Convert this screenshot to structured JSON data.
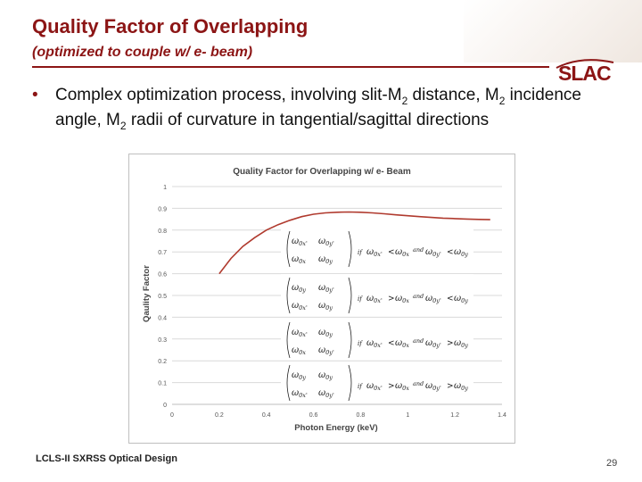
{
  "slide": {
    "title": "Quality Factor of Overlapping",
    "subtitle": "(optimized to couple w/ e- beam)",
    "logo": "SLAC",
    "bullet": {
      "marker": "•",
      "text_a": "Complex optimization process, involving slit-M",
      "sub_a": "2",
      "text_b": " distance, M",
      "sub_b": "2",
      "text_c": " incidence angle, M",
      "sub_c": "2",
      "text_d": " radii of curvature in tangential/sagittal directions"
    },
    "footer": "LCLS-II SXRSS Optical Design",
    "page_number": "29"
  },
  "chart_data": {
    "type": "line",
    "title": "Quality Factor for Overlapping w/ e- Beam",
    "xlabel": "Photon Energy (keV)",
    "ylabel": "Qaulity Factor",
    "xlim": [
      0,
      1.4
    ],
    "ylim": [
      0,
      1
    ],
    "xticks": [
      "0",
      "0.2",
      "0.4",
      "0.6",
      "0.8",
      "1",
      "1.2",
      "1.4"
    ],
    "yticks": [
      "0",
      "0.1",
      "0.2",
      "0.3",
      "0.4",
      "0.5",
      "0.6",
      "0.7",
      "0.8",
      "0.9",
      "1"
    ],
    "grid": true,
    "line_color": "#b03a2e",
    "series": [
      {
        "x": [
          0.2,
          0.25,
          0.3,
          0.35,
          0.4,
          0.45,
          0.5,
          0.55,
          0.6,
          0.65,
          0.7,
          0.75,
          0.8,
          0.85,
          0.9,
          0.95,
          1.0,
          1.05,
          1.1,
          1.15,
          1.2,
          1.25,
          1.3,
          1.35
        ],
        "y": [
          0.6,
          0.67,
          0.725,
          0.765,
          0.8,
          0.825,
          0.845,
          0.862,
          0.873,
          0.879,
          0.882,
          0.883,
          0.882,
          0.879,
          0.875,
          0.87,
          0.866,
          0.862,
          0.858,
          0.855,
          0.853,
          0.851,
          0.849,
          0.848
        ]
      }
    ],
    "annotations": {
      "cond_if": "if",
      "cond_and": "and",
      "omega": "ω",
      "sub_0x": "0x",
      "sub_0y": "0y",
      "prime": "'",
      "op_lt": "<",
      "op_gt": ">"
    }
  }
}
